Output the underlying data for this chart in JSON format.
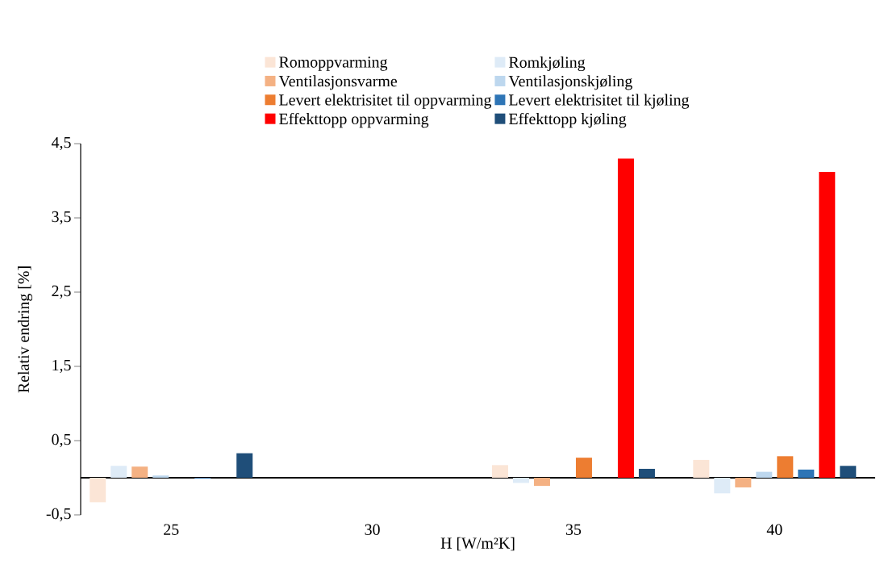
{
  "chart_data": {
    "type": "bar",
    "xlabel": "H [W/m²K]",
    "ylabel": "Relativ endring [%]",
    "categories": [
      "25",
      "30",
      "35",
      "40"
    ],
    "series": [
      {
        "name": "Romoppvarming",
        "color": "#fbe5d6",
        "values": [
          -0.33,
          0,
          0.17,
          0.24
        ]
      },
      {
        "name": "Romkjøling",
        "color": "#deebf7",
        "values": [
          0.16,
          0,
          -0.07,
          -0.21
        ]
      },
      {
        "name": "Ventilasjonsvarme",
        "color": "#f4b183",
        "values": [
          0.15,
          0,
          -0.11,
          -0.13
        ]
      },
      {
        "name": "Ventilasjonskjøling",
        "color": "#bdd7ee",
        "values": [
          0.03,
          0,
          0,
          0.08
        ]
      },
      {
        "name": "Levert elektrisitet til oppvarming",
        "color": "#ed7d31",
        "values": [
          0,
          0,
          0.27,
          0.29
        ]
      },
      {
        "name": "Levert elektrisitet til kjøling",
        "color": "#2e75b6",
        "values": [
          -0.01,
          0,
          0,
          0.11
        ]
      },
      {
        "name": "Effekttopp oppvarming",
        "color": "#ff0000",
        "values": [
          0,
          0,
          4.3,
          4.12
        ]
      },
      {
        "name": "Effekttopp kjøling",
        "color": "#1f4e79",
        "values": [
          0.33,
          0,
          0.12,
          0.16
        ]
      }
    ],
    "ylim": [
      -0.5,
      4.5
    ],
    "yticks": [
      {
        "value": -0.5,
        "label": "-0,5"
      },
      {
        "value": 0.5,
        "label": "0,5"
      },
      {
        "value": 1.5,
        "label": "1,5"
      },
      {
        "value": 2.5,
        "label": "2,5"
      },
      {
        "value": 3.5,
        "label": "3,5"
      },
      {
        "value": 4.5,
        "label": "4,5"
      }
    ],
    "legend": "top"
  }
}
